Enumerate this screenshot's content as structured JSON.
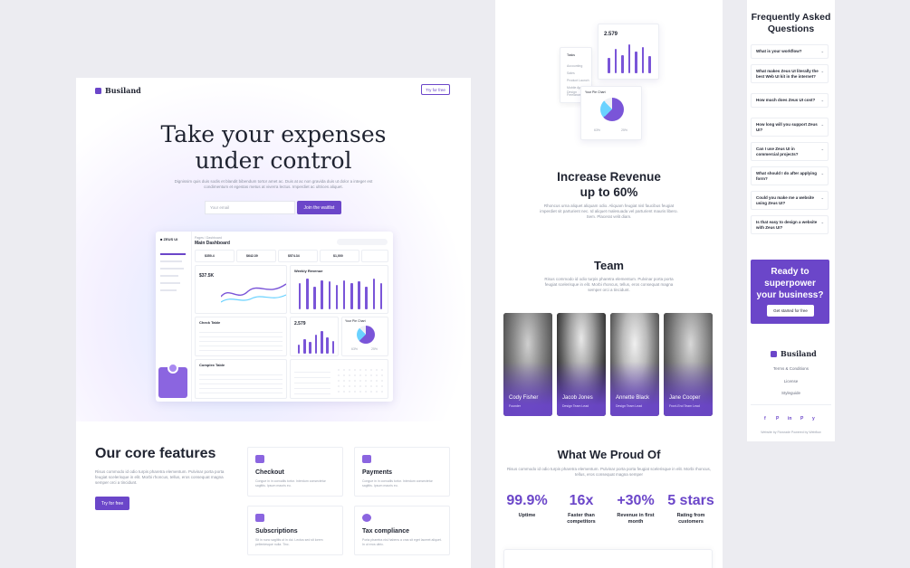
{
  "brand": {
    "name": "Busiland",
    "accent": "#6b46c9"
  },
  "landing": {
    "nav_button": "Try for free",
    "hero_title_1": "Take your expenses",
    "hero_title_2": "under control",
    "hero_sub": "Dignissim quis duis sodis et blandit bibendum tortor amet ac. Duis at ac non gravida duis ut dolor a integer est condimentum et egestas metus at viverra lectus. Imperdiet ac ultrices aliquet.",
    "email_placeholder": "Your email",
    "cta": "Join the waitlist",
    "dashboard": {
      "crumb": "Pages / Dashboard",
      "title": "Main Dashboard",
      "stats": [
        "$350.4",
        "$642.39",
        "$574.34",
        "$1,000"
      ],
      "chart1_value": "$37.5K",
      "weekly_title": "Weekly Revenue",
      "check_table": "Check Table",
      "daily_value": "2.579",
      "pie_title": "Your Pie Chart",
      "pie_vals": [
        "63%",
        "25%"
      ],
      "complex_table": "Complex Table",
      "weekly_bars": [
        0.8,
        0.95,
        0.7,
        0.9,
        0.85,
        0.75,
        0.9,
        0.8,
        0.85,
        0.7,
        0.95,
        0.8
      ],
      "daily_bars": [
        0.4,
        0.6,
        0.5,
        0.8,
        0.95,
        0.7,
        0.55
      ]
    },
    "features_title": "Our core features",
    "features_desc": "Risus commodo id odio turpis pharetra elementum. Pulvinar porta porta feugiat scelerisque in elit. Morbi rhoncus, tellus, eros consequat magna semper orci a tincidunt.",
    "features_button": "Try for free",
    "features": [
      {
        "title": "Checkout",
        "desc": "Congue in in convallis tortor. Interdum consectetur sagittis. Ipsum mauris eu."
      },
      {
        "title": "Payments",
        "desc": "Congue in in convallis tortor. Interdum consectetur sagittis. Ipsum mauris eu."
      },
      {
        "title": "Subscriptions",
        "desc": "Sit in nunc sagittis ut in dui. Lectus sed sit lorem pellentesque nulla. Tinc."
      },
      {
        "title": "Tax compliance",
        "desc": "Porta pharetra nisi habens a cras sit eget laoreet aliquet. In ut eros ultric."
      }
    ]
  },
  "revenue": {
    "mini_value": "2.579",
    "mini_rows": [
      "Tasks",
      "Accounting",
      "Sales",
      "Product Launch",
      "Mobile App Design",
      "Freelance"
    ],
    "pie_title": "Your Pie Chart",
    "pie_vals": [
      "63%",
      "25%"
    ],
    "mini_bars": [
      0.5,
      0.8,
      0.6,
      0.95,
      0.7,
      0.85,
      0.55
    ],
    "title_1": "Increase Revenue",
    "title_2": "up to 60%",
    "desc": "Rhoncus urna aliquet aliquam odio. Aliquam feugiat nisl faucibus feugiat imperdiet sit parturient nec. Id aliquet malesuada vel parturient mauris libero. Sem. Placerat velit diam."
  },
  "team": {
    "title": "Team",
    "desc": "Risus commodo id odio turpis pharetra elementum. Pulvinar porta porta feugiat scelerisque in elit. Morbi rhoncus, tellus, eros consequat magna semper orci a tincidunt.",
    "members": [
      {
        "name": "Cody Fisher",
        "role": "Founder"
      },
      {
        "name": "Jacob Jones",
        "role": "Design Team Lead"
      },
      {
        "name": "Annette Black",
        "role": "Design Team Lead"
      },
      {
        "name": "Jane Cooper",
        "role": "Front-End Team Lead"
      }
    ]
  },
  "proud": {
    "title": "What We Proud Of",
    "desc": "Risus commodo id odio turpis pharetra elementum. Pulvinar porta porta feugiat scelerisque in elit. Morbi rhoncus, tellus, eros consequat magna semper",
    "stats": [
      {
        "value": "99.9%",
        "label": "Uptime"
      },
      {
        "value": "16x",
        "label": "Faster than competitors"
      },
      {
        "value": "+30%",
        "label": "Revenue in first month"
      },
      {
        "value": "5 stars",
        "label": "Rating from customers"
      }
    ]
  },
  "faq": {
    "title": "Frequently Asked Questions",
    "items": [
      "What is your workflow?",
      "What makes Zeus UI literally the best Web UI kit in the internet?",
      "How much does Zeus UI cost?",
      "How long will you support Zeus UI?",
      "Can I use Zeus UI in commercial projects?",
      "What should I do after applying form?",
      "Could you make me a website using Zeus UI?",
      "Is that easy to design a website with Zeus UI?"
    ],
    "cta_title": "Ready to superpower your business?",
    "cta_button": "Get started for free",
    "footer_links": [
      "Terms & Conditions",
      "License",
      "Styleguide"
    ],
    "footer_social": [
      "f",
      "P",
      "in",
      "P",
      "y"
    ],
    "credit": "Website by Flowrade Powered by Webflow"
  }
}
